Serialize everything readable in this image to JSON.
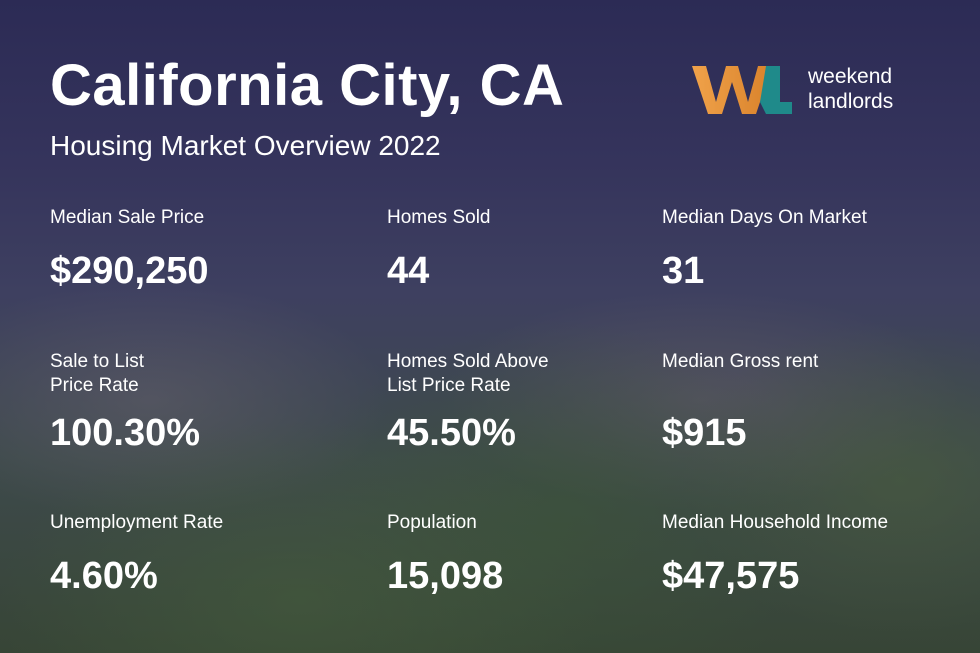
{
  "header": {
    "title": "California City, CA",
    "subtitle": "Housing Market Overview 2022"
  },
  "logo": {
    "lines": [
      "weekend",
      "landlords"
    ]
  },
  "stats": [
    {
      "label": [
        "Median Sale Price"
      ],
      "value": "$290,250"
    },
    {
      "label": [
        "Homes Sold"
      ],
      "value": "44"
    },
    {
      "label": [
        "Median Days On Market"
      ],
      "value": "31"
    },
    {
      "label": [
        "Sale to List",
        "Price Rate"
      ],
      "value": "100.30%"
    },
    {
      "label": [
        "Homes Sold Above",
        "List Price Rate"
      ],
      "value": "45.50%"
    },
    {
      "label": [
        "Median Gross rent"
      ],
      "value": "$915"
    },
    {
      "label": [
        "Unemployment Rate"
      ],
      "value": "4.60%"
    },
    {
      "label": [
        "Population"
      ],
      "value": "15,098"
    },
    {
      "label": [
        "Median Household Income"
      ],
      "value": "$47,575"
    }
  ]
}
